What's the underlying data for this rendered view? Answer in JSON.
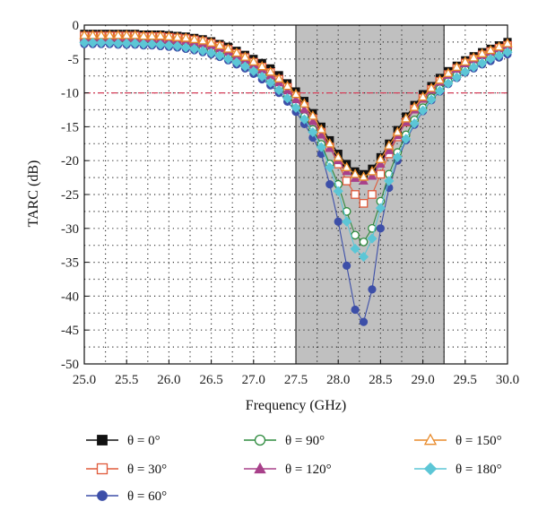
{
  "chart_data": {
    "type": "line",
    "title": "",
    "xlabel": "Frequency (GHz)",
    "ylabel": "TARC (dB)",
    "xlim": [
      25.0,
      30.0
    ],
    "ylim": [
      -50,
      0
    ],
    "x_ticks": [
      "25.0",
      "25.5",
      "26.0",
      "26.5",
      "27.0",
      "27.5",
      "28.0",
      "28.5",
      "29.0",
      "29.5",
      "30.0"
    ],
    "y_ticks": [
      "0",
      "-5",
      "-10",
      "-15",
      "-20",
      "-25",
      "-30",
      "-35",
      "-40",
      "-45",
      "-50"
    ],
    "grid": "dotted",
    "reference_line": {
      "y": -10,
      "color": "#d6405a"
    },
    "shaded_band": {
      "x_start": 27.5,
      "x_end": 29.25,
      "color": "#c0c0c0"
    },
    "legend_position": "bottom",
    "x": [
      25.0,
      25.1,
      25.2,
      25.3,
      25.4,
      25.5,
      25.6,
      25.7,
      25.8,
      25.9,
      26.0,
      26.1,
      26.2,
      26.3,
      26.4,
      26.5,
      26.6,
      26.7,
      26.8,
      26.9,
      27.0,
      27.1,
      27.2,
      27.3,
      27.4,
      27.5,
      27.6,
      27.7,
      27.8,
      27.9,
      28.0,
      28.1,
      28.2,
      28.3,
      28.4,
      28.5,
      28.6,
      28.7,
      28.8,
      28.9,
      29.0,
      29.1,
      29.2,
      29.3,
      29.4,
      29.5,
      29.6,
      29.7,
      29.8,
      29.9,
      30.0
    ],
    "series": [
      {
        "name": "θ = 0°",
        "color": "#111111",
        "marker": "square-filled",
        "values": [
          -1.3,
          -1.3,
          -1.3,
          -1.3,
          -1.3,
          -1.3,
          -1.3,
          -1.4,
          -1.4,
          -1.4,
          -1.5,
          -1.6,
          -1.7,
          -1.9,
          -2.1,
          -2.4,
          -2.8,
          -3.2,
          -3.8,
          -4.4,
          -5.0,
          -5.6,
          -6.4,
          -7.4,
          -8.6,
          -9.8,
          -11.2,
          -13.0,
          -15.0,
          -17.0,
          -19.0,
          -20.5,
          -21.6,
          -22.0,
          -21.2,
          -19.5,
          -17.5,
          -15.5,
          -13.5,
          -11.8,
          -10.2,
          -9.0,
          -7.8,
          -6.8,
          -6.0,
          -5.2,
          -4.6,
          -4.0,
          -3.5,
          -3.0,
          -2.5
        ]
      },
      {
        "name": "θ = 30°",
        "color": "#e05a3a",
        "marker": "square-open",
        "values": [
          -1.6,
          -1.6,
          -1.6,
          -1.6,
          -1.6,
          -1.6,
          -1.6,
          -1.7,
          -1.7,
          -1.7,
          -1.8,
          -1.9,
          -2.0,
          -2.2,
          -2.4,
          -2.7,
          -3.1,
          -3.6,
          -4.2,
          -4.8,
          -5.5,
          -6.2,
          -7.0,
          -8.0,
          -9.2,
          -10.5,
          -12.0,
          -13.8,
          -15.8,
          -18.0,
          -20.5,
          -23.0,
          -25.0,
          -26.3,
          -25.0,
          -22.0,
          -19.0,
          -16.5,
          -14.3,
          -12.4,
          -10.8,
          -9.5,
          -8.3,
          -7.3,
          -6.4,
          -5.6,
          -5.0,
          -4.4,
          -3.9,
          -3.4,
          -3.0
        ]
      },
      {
        "name": "θ = 60°",
        "color": "#3d4fa8",
        "marker": "circle-filled",
        "values": [
          -2.8,
          -2.8,
          -2.8,
          -2.8,
          -2.9,
          -2.9,
          -2.9,
          -3.0,
          -3.0,
          -3.1,
          -3.2,
          -3.3,
          -3.5,
          -3.7,
          -4.0,
          -4.3,
          -4.7,
          -5.2,
          -5.8,
          -6.4,
          -7.2,
          -8.0,
          -8.9,
          -10.0,
          -11.3,
          -12.8,
          -14.6,
          -16.6,
          -19.0,
          -23.5,
          -29.0,
          -35.5,
          -42.0,
          -43.8,
          -39.0,
          -30.0,
          -24.0,
          -20.0,
          -17.0,
          -14.7,
          -12.7,
          -11.1,
          -9.8,
          -8.7,
          -7.8,
          -7.0,
          -6.4,
          -5.8,
          -5.3,
          -4.8,
          -4.3
        ]
      },
      {
        "name": "θ = 90°",
        "color": "#2e8b3e",
        "marker": "circle-open",
        "values": [
          -2.4,
          -2.4,
          -2.4,
          -2.4,
          -2.5,
          -2.5,
          -2.5,
          -2.6,
          -2.6,
          -2.7,
          -2.8,
          -2.9,
          -3.1,
          -3.3,
          -3.5,
          -3.8,
          -4.2,
          -4.7,
          -5.2,
          -5.8,
          -6.5,
          -7.3,
          -8.2,
          -9.2,
          -10.4,
          -11.8,
          -13.5,
          -15.4,
          -17.6,
          -20.5,
          -23.5,
          -27.5,
          -31.0,
          -32.0,
          -30.0,
          -26.0,
          -22.0,
          -18.8,
          -16.2,
          -14.0,
          -12.2,
          -10.7,
          -9.4,
          -8.3,
          -7.4,
          -6.6,
          -5.9,
          -5.3,
          -4.7,
          -4.2,
          -3.7
        ]
      },
      {
        "name": "θ = 120°",
        "color": "#a8408a",
        "marker": "triangle-filled",
        "values": [
          -1.9,
          -1.9,
          -1.9,
          -1.9,
          -1.9,
          -1.9,
          -2.0,
          -2.0,
          -2.0,
          -2.1,
          -2.2,
          -2.3,
          -2.4,
          -2.6,
          -2.8,
          -3.1,
          -3.5,
          -4.0,
          -4.6,
          -5.2,
          -5.9,
          -6.6,
          -7.5,
          -8.5,
          -9.7,
          -11.0,
          -12.5,
          -14.2,
          -16.2,
          -18.2,
          -20.0,
          -21.6,
          -22.6,
          -23.0,
          -22.3,
          -20.5,
          -18.5,
          -16.3,
          -14.3,
          -12.5,
          -10.9,
          -9.6,
          -8.4,
          -7.4,
          -6.5,
          -5.7,
          -5.1,
          -4.5,
          -4.0,
          -3.5,
          -3.0
        ]
      },
      {
        "name": "θ = 150°",
        "color": "#e88a2a",
        "marker": "triangle-open",
        "values": [
          -1.5,
          -1.5,
          -1.5,
          -1.5,
          -1.5,
          -1.5,
          -1.5,
          -1.6,
          -1.6,
          -1.6,
          -1.7,
          -1.8,
          -1.9,
          -2.1,
          -2.3,
          -2.6,
          -3.0,
          -3.5,
          -4.1,
          -4.7,
          -5.4,
          -6.1,
          -6.9,
          -7.9,
          -9.0,
          -10.2,
          -11.6,
          -13.4,
          -15.4,
          -17.5,
          -19.5,
          -21.0,
          -22.0,
          -22.4,
          -21.6,
          -19.8,
          -17.8,
          -15.8,
          -13.8,
          -12.1,
          -10.6,
          -9.3,
          -8.1,
          -7.1,
          -6.2,
          -5.4,
          -4.8,
          -4.2,
          -3.7,
          -3.2,
          -2.7
        ]
      },
      {
        "name": "θ = 180°",
        "color": "#5cc6d6",
        "marker": "diamond-filled",
        "values": [
          -2.6,
          -2.6,
          -2.6,
          -2.6,
          -2.7,
          -2.7,
          -2.7,
          -2.8,
          -2.8,
          -2.9,
          -3.0,
          -3.1,
          -3.3,
          -3.5,
          -3.8,
          -4.1,
          -4.5,
          -5.0,
          -5.5,
          -6.1,
          -6.8,
          -7.6,
          -8.5,
          -9.6,
          -10.8,
          -12.2,
          -13.9,
          -15.8,
          -18.0,
          -21.0,
          -24.5,
          -29.0,
          -33.0,
          -34.2,
          -31.5,
          -27.0,
          -23.0,
          -19.5,
          -16.8,
          -14.5,
          -12.6,
          -11.0,
          -9.7,
          -8.6,
          -7.7,
          -6.9,
          -6.2,
          -5.6,
          -5.0,
          -4.5,
          -4.0
        ]
      }
    ]
  }
}
